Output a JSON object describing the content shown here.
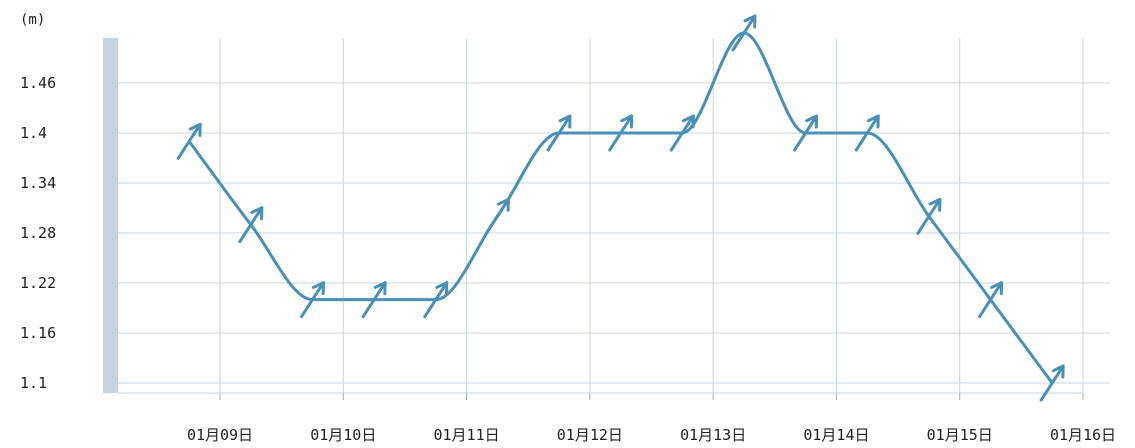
{
  "chart_data": {
    "type": "line",
    "title": "",
    "xlabel": "",
    "ylabel": "(m)",
    "categories": [
      "01月09日",
      "01月10日",
      "01月11日",
      "01月12日",
      "01月13日",
      "01月14日",
      "01月15日",
      "01月16日"
    ],
    "y_ticks": [
      "1.46",
      "1.4",
      "1.34",
      "1.28",
      "1.22",
      "1.16",
      "1.1"
    ],
    "ylim": [
      1.08,
      1.52
    ],
    "grid": true,
    "series": [
      {
        "values": [
          {
            "x": 8.75,
            "y": 1.39
          },
          {
            "x": 9.25,
            "y": 1.29
          },
          {
            "x": 9.75,
            "y": 1.2
          },
          {
            "x": 10.25,
            "y": 1.2
          },
          {
            "x": 10.75,
            "y": 1.2
          },
          {
            "x": 11.25,
            "y": 1.3
          },
          {
            "x": 11.75,
            "y": 1.4
          },
          {
            "x": 12.25,
            "y": 1.4
          },
          {
            "x": 12.75,
            "y": 1.4
          },
          {
            "x": 13.25,
            "y": 1.52
          },
          {
            "x": 13.75,
            "y": 1.4
          },
          {
            "x": 14.25,
            "y": 1.4
          },
          {
            "x": 14.75,
            "y": 1.3
          },
          {
            "x": 15.25,
            "y": 1.2
          },
          {
            "x": 15.75,
            "y": 1.1
          }
        ]
      }
    ],
    "colors": {
      "line": "#4a8fb5",
      "grid": "#c8d6e4",
      "axis_bar": "#c5d3e0"
    }
  }
}
